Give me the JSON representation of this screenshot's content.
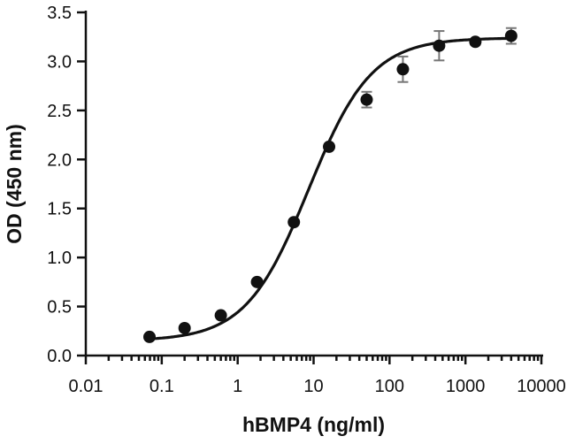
{
  "chart_data": {
    "type": "scatter",
    "xlabel": "hBMP4 (ng/ml)",
    "ylabel": "OD (450 nm)",
    "x_scale": "log",
    "xlim": [
      0.01,
      10000
    ],
    "ylim": [
      0.0,
      3.5
    ],
    "x_ticks": [
      0.01,
      0.1,
      1,
      10,
      100,
      1000,
      10000
    ],
    "x_tick_labels": [
      "0.01",
      "0.1",
      "1",
      "10",
      "100",
      "1000",
      "10000"
    ],
    "y_ticks": [
      0.0,
      0.5,
      1.0,
      1.5,
      2.0,
      2.5,
      3.0,
      3.5
    ],
    "y_tick_labels": [
      "0.0",
      "0.5",
      "1.0",
      "1.5",
      "2.0",
      "2.5",
      "3.0",
      "3.5"
    ],
    "grid": false,
    "series": [
      {
        "points": [
          {
            "x": 0.069,
            "y": 0.19,
            "err": 0.02
          },
          {
            "x": 0.2,
            "y": 0.28,
            "err": 0.02
          },
          {
            "x": 0.6,
            "y": 0.41,
            "err": 0.02
          },
          {
            "x": 1.8,
            "y": 0.75,
            "err": 0.02
          },
          {
            "x": 5.5,
            "y": 1.36,
            "err": 0.02
          },
          {
            "x": 16,
            "y": 2.13,
            "err": 0.02
          },
          {
            "x": 50,
            "y": 2.61,
            "err": 0.08
          },
          {
            "x": 150,
            "y": 2.92,
            "err": 0.13
          },
          {
            "x": 450,
            "y": 3.16,
            "err": 0.15
          },
          {
            "x": 1350,
            "y": 3.2,
            "err": 0.03
          },
          {
            "x": 4000,
            "y": 3.26,
            "err": 0.08
          }
        ],
        "fit": {
          "model": "4PL",
          "bottom": 0.15,
          "top": 3.24,
          "ec50": 8.6,
          "hill": 1.05
        }
      }
    ],
    "colors": {
      "points": "#111111",
      "fit_line": "#111111",
      "error_bars": "#777777",
      "axes": "#111111"
    }
  }
}
